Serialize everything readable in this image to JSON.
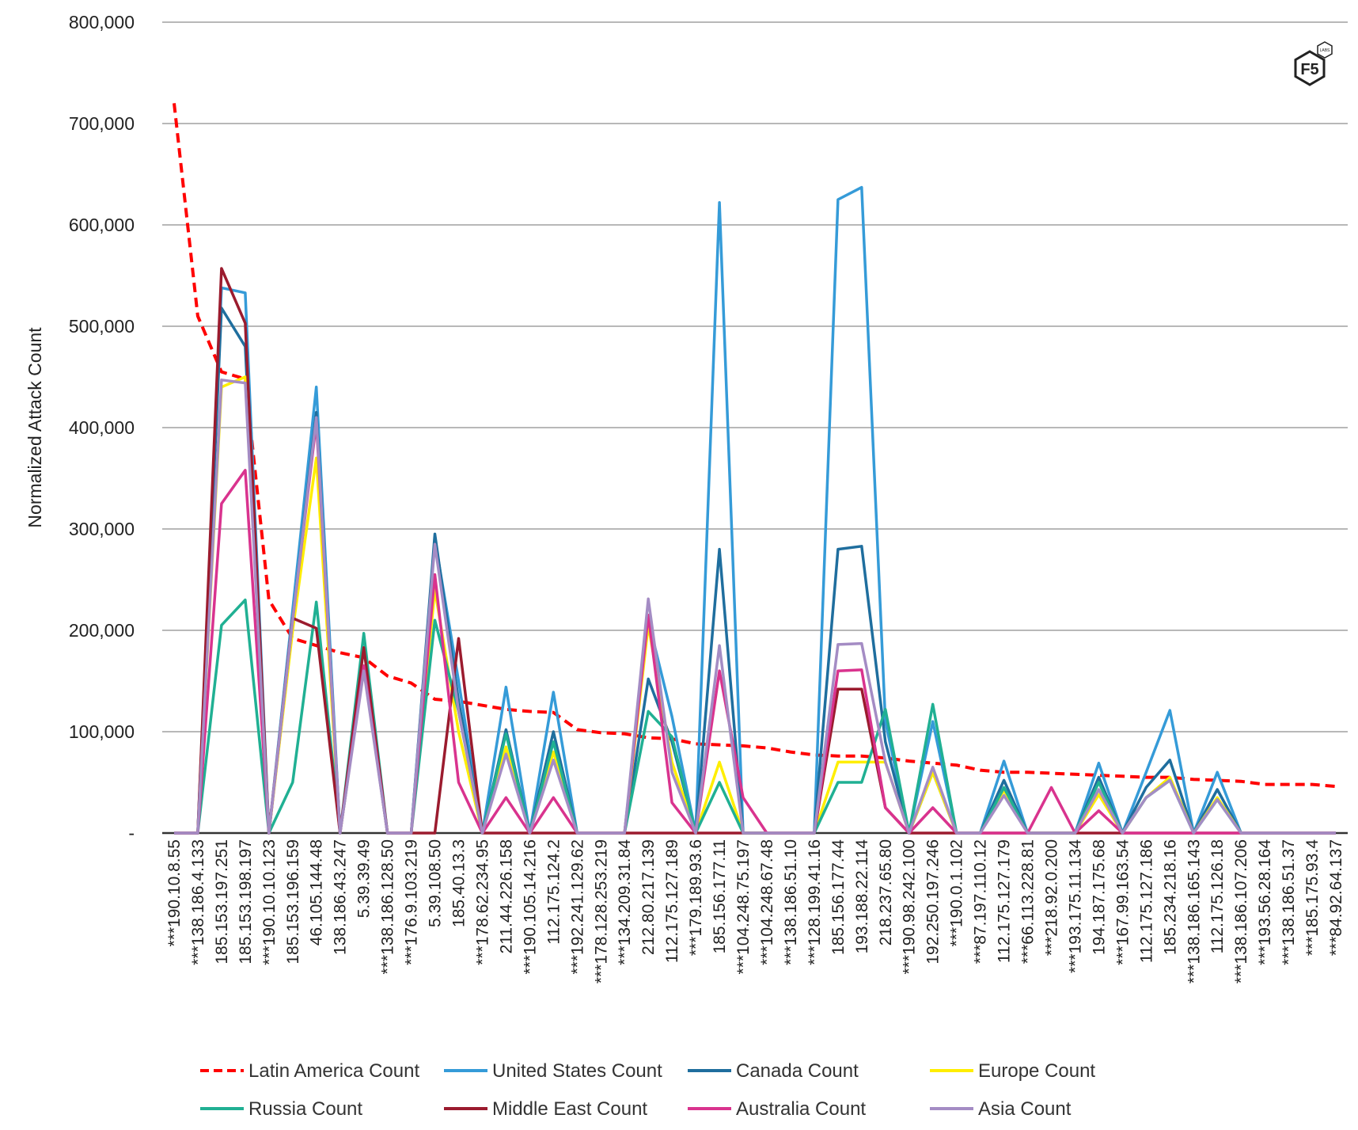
{
  "logo": {
    "text": "F5",
    "subtext": "LABS"
  },
  "chart_data": {
    "type": "line",
    "title": "",
    "xlabel": "",
    "ylabel": "Normalized Attack Count",
    "ylim": [
      0,
      800000
    ],
    "yticks": [
      0,
      100000,
      200000,
      300000,
      400000,
      500000,
      600000,
      700000,
      800000
    ],
    "ytick_labels": [
      "-",
      "100,000",
      "200,000",
      "300,000",
      "400,000",
      "500,000",
      "600,000",
      "700,000",
      "800,000"
    ],
    "grid": true,
    "legend_position": "bottom",
    "categories": [
      "***190.10.8.55",
      "***138.186.4.133",
      "185.153.197.251",
      "185.153.198.197",
      "***190.10.10.123",
      "185.153.196.159",
      "46.105.144.48",
      "138.186.43.247",
      "5.39.39.49",
      "***138.186.128.50",
      "***176.9.103.219",
      "5.39.108.50",
      "185.40.13.3",
      "***178.62.234.95",
      "211.44.226.158",
      "***190.105.14.216",
      "112.175.124.2",
      "***192.241.129.62",
      "***178.128.253.219",
      "***134.209.31.84",
      "212.80.217.139",
      "112.175.127.189",
      "***179.189.93.6",
      "185.156.177.11",
      "***104.248.75.197",
      "***104.248.67.48",
      "***138.186.51.10",
      "***128.199.41.16",
      "185.156.177.44",
      "193.188.22.114",
      "218.237.65.80",
      "***190.98.242.100",
      "192.250.197.246",
      "***190.0.1.102",
      "***87.197.110.12",
      "112.175.127.179",
      "***66.113.228.81",
      "***218.92.0.200",
      "***193.175.11.134",
      "194.187.175.68",
      "***167.99.163.54",
      "112.175.127.186",
      "185.234.218.16",
      "***138.186.165.143",
      "112.175.126.18",
      "***138.186.107.206",
      "***193.56.28.164",
      "***138.186.51.37",
      "***185.175.93.4",
      "***84.92.64.137"
    ],
    "series": [
      {
        "name": "Latin America Count",
        "color": "#ff0000",
        "dashed": true,
        "values": [
          720000,
          510000,
          455000,
          448000,
          230000,
          192000,
          185000,
          178000,
          173000,
          155000,
          148000,
          132000,
          130000,
          126000,
          122000,
          120000,
          119000,
          102000,
          99000,
          98000,
          94000,
          93000,
          88000,
          87000,
          86000,
          84000,
          80000,
          77000,
          76000,
          76000,
          74000,
          71000,
          69000,
          67000,
          62000,
          60000,
          60000,
          59000,
          58000,
          57000,
          56000,
          55000,
          55000,
          53000,
          52000,
          51000,
          48000,
          48000,
          48000,
          46000
        ]
      },
      {
        "name": "United States Count",
        "color": "#359bd8",
        "dashed": false,
        "values": [
          0,
          0,
          538000,
          533000,
          0,
          220000,
          440000,
          0,
          165000,
          0,
          0,
          290000,
          150000,
          0,
          144000,
          0,
          139000,
          0,
          0,
          0,
          210000,
          115000,
          0,
          622000,
          0,
          0,
          0,
          0,
          625000,
          637000,
          110000,
          0,
          110000,
          0,
          0,
          71000,
          0,
          0,
          0,
          69000,
          0,
          60000,
          121000,
          0,
          60000,
          0,
          0,
          0,
          0,
          0
        ]
      },
      {
        "name": "Canada Count",
        "color": "#1f6e9e",
        "dashed": false,
        "values": [
          0,
          0,
          518000,
          480000,
          0,
          210000,
          415000,
          0,
          165000,
          0,
          0,
          295000,
          130000,
          0,
          102000,
          0,
          100000,
          0,
          0,
          0,
          152000,
          90000,
          0,
          280000,
          0,
          0,
          0,
          0,
          280000,
          283000,
          90000,
          0,
          60000,
          0,
          0,
          52000,
          0,
          0,
          0,
          55000,
          0,
          45000,
          72000,
          0,
          43000,
          0,
          0,
          0,
          0,
          0
        ]
      },
      {
        "name": "Europe Count",
        "color": "#ffee00",
        "dashed": false,
        "values": [
          0,
          0,
          440000,
          450000,
          0,
          200000,
          370000,
          0,
          165000,
          0,
          0,
          240000,
          100000,
          0,
          85000,
          0,
          80000,
          0,
          0,
          0,
          205000,
          70000,
          0,
          70000,
          0,
          0,
          0,
          0,
          70000,
          70000,
          70000,
          0,
          60000,
          0,
          0,
          42000,
          0,
          0,
          0,
          38000,
          0,
          35000,
          55000,
          0,
          35000,
          0,
          0,
          0,
          0,
          0
        ]
      },
      {
        "name": "Russia Count",
        "color": "#20b093",
        "dashed": false,
        "values": [
          0,
          0,
          205000,
          230000,
          0,
          50000,
          228000,
          0,
          197000,
          0,
          0,
          210000,
          120000,
          0,
          98000,
          0,
          90000,
          0,
          0,
          0,
          120000,
          95000,
          0,
          50000,
          0,
          0,
          0,
          0,
          50000,
          50000,
          122000,
          0,
          127000,
          0,
          0,
          45000,
          0,
          0,
          0,
          50000,
          0,
          35000,
          52000,
          0,
          33000,
          0,
          0,
          0,
          0,
          0
        ]
      },
      {
        "name": "Middle East Count",
        "color": "#9b1b2e",
        "dashed": false,
        "values": [
          0,
          0,
          557000,
          503000,
          0,
          212000,
          202000,
          0,
          183000,
          0,
          0,
          0,
          192000,
          0,
          0,
          0,
          0,
          0,
          0,
          0,
          0,
          0,
          0,
          0,
          0,
          0,
          0,
          0,
          142000,
          142000,
          25000,
          0,
          0,
          0,
          0,
          0,
          0,
          0,
          0,
          0,
          0,
          0,
          0,
          0,
          0,
          0,
          0,
          0,
          0,
          0
        ]
      },
      {
        "name": "Australia Count",
        "color": "#d9338e",
        "dashed": false,
        "values": [
          0,
          0,
          325000,
          358000,
          0,
          210000,
          405000,
          0,
          165000,
          0,
          0,
          255000,
          50000,
          0,
          35000,
          0,
          35000,
          0,
          0,
          0,
          215000,
          30000,
          0,
          160000,
          35000,
          0,
          0,
          0,
          160000,
          161000,
          25000,
          0,
          25000,
          0,
          0,
          0,
          0,
          45000,
          0,
          22000,
          0,
          0,
          0,
          0,
          0,
          0,
          0,
          0,
          0,
          0
        ]
      },
      {
        "name": "Asia Count",
        "color": "#a48cc4",
        "dashed": false,
        "values": [
          0,
          0,
          447000,
          444000,
          0,
          210000,
          410000,
          0,
          160000,
          0,
          0,
          285000,
          120000,
          0,
          78000,
          0,
          72000,
          0,
          0,
          0,
          231000,
          60000,
          0,
          185000,
          0,
          0,
          0,
          0,
          186000,
          187000,
          70000,
          0,
          65000,
          0,
          0,
          37000,
          0,
          0,
          0,
          43000,
          0,
          35000,
          52000,
          0,
          33000,
          0,
          0,
          0,
          0,
          0
        ]
      }
    ]
  }
}
